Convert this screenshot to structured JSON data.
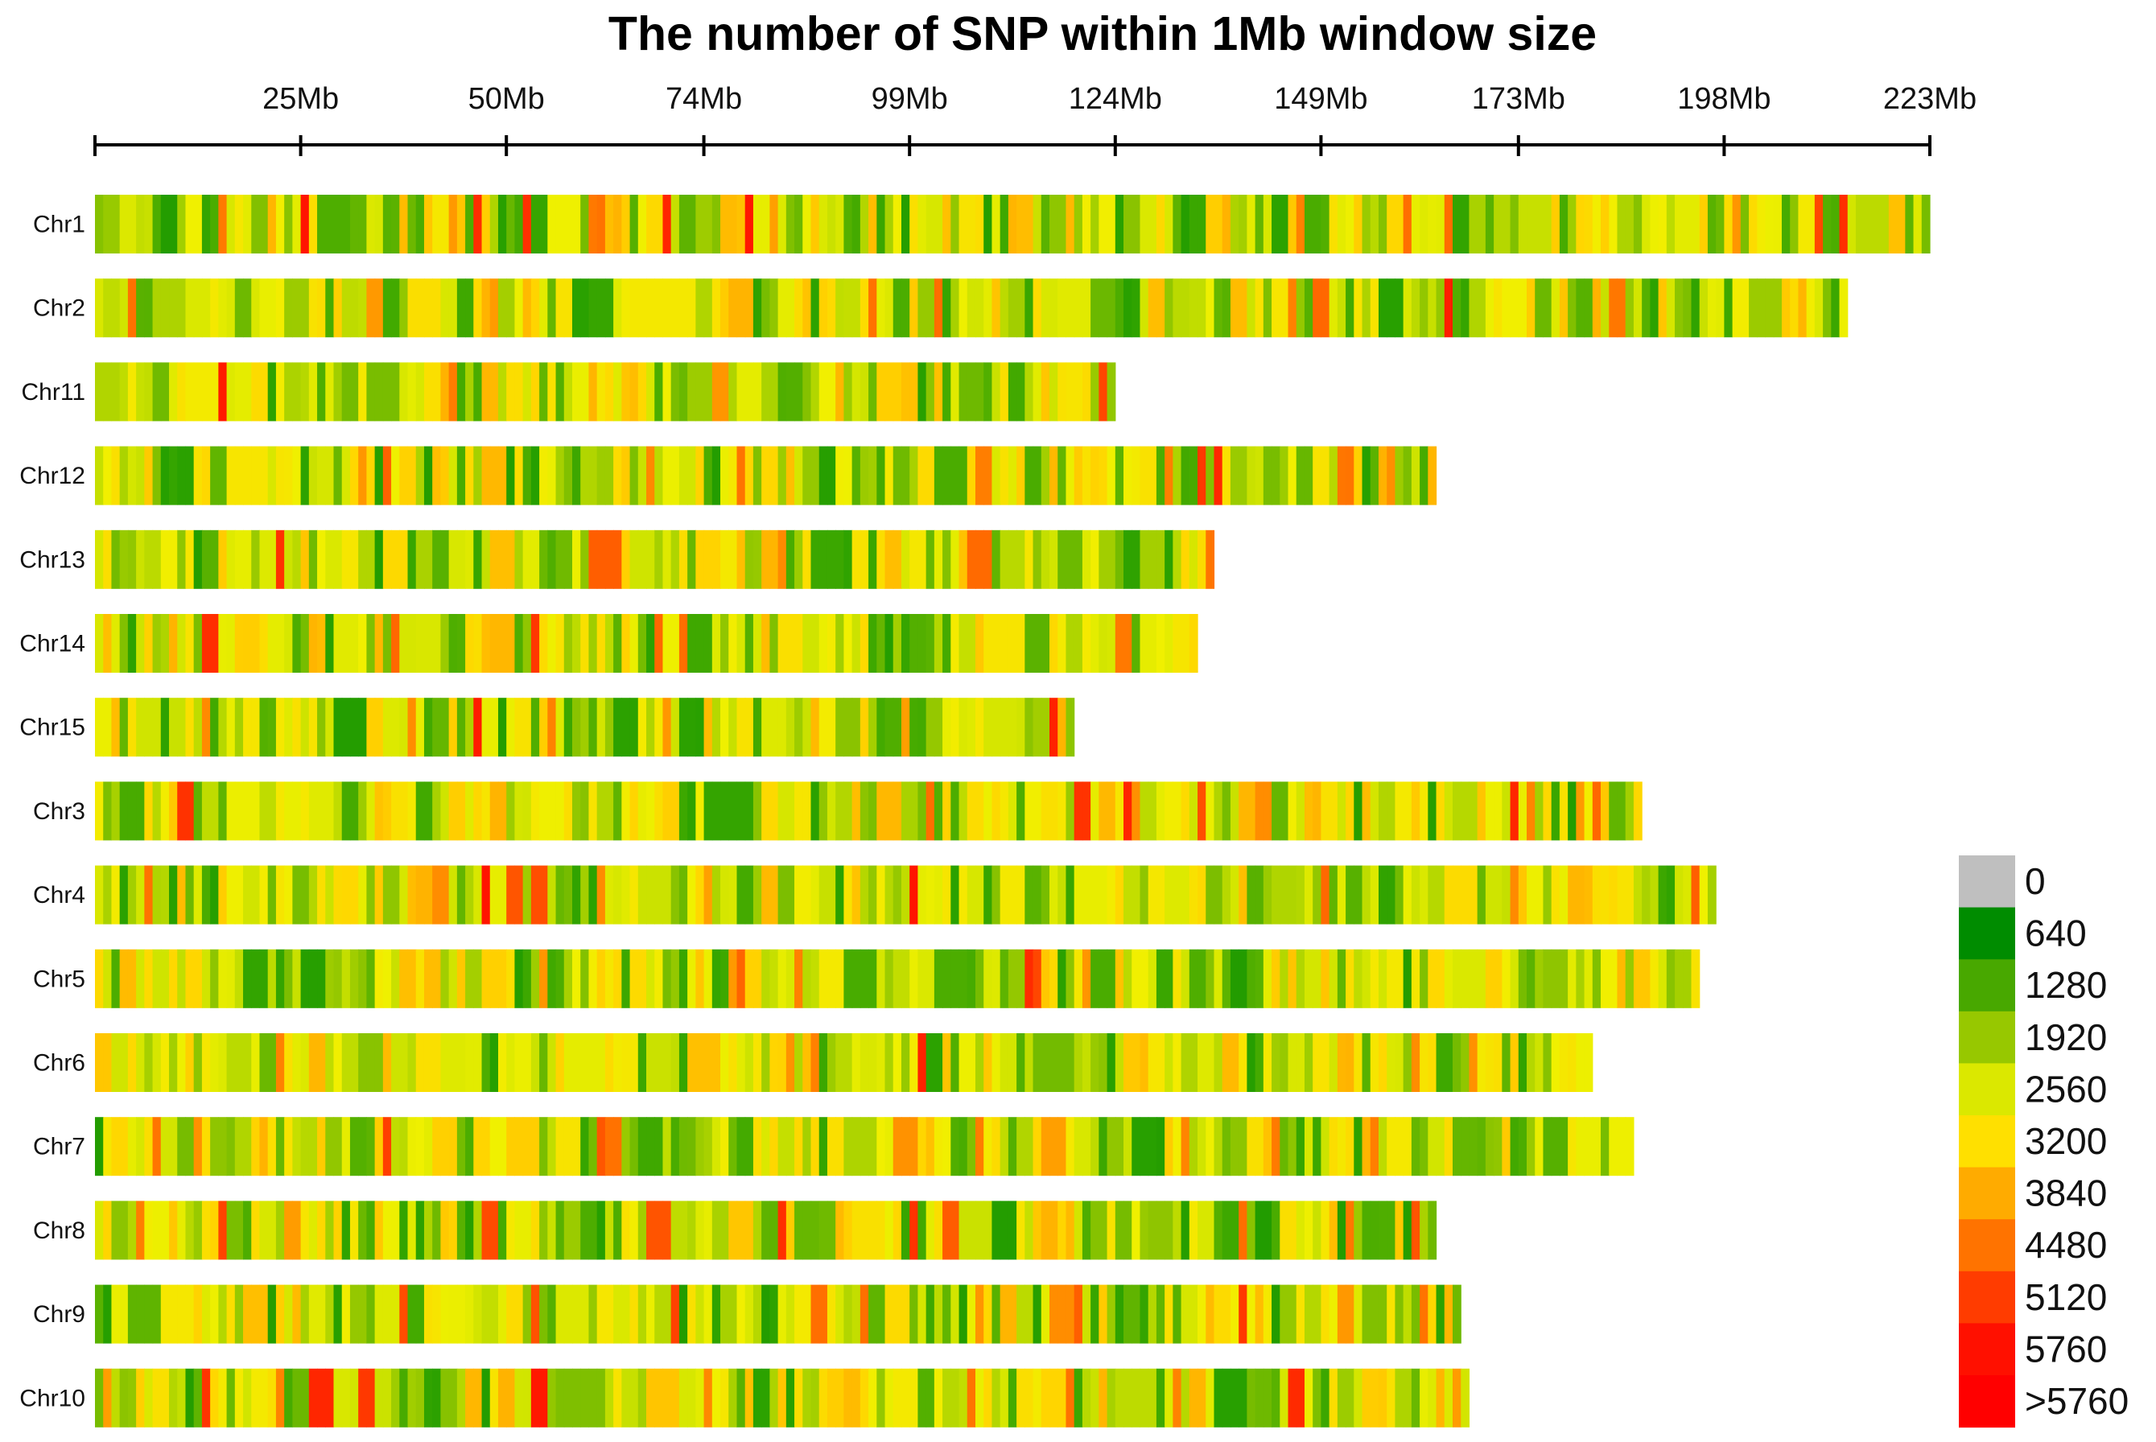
{
  "chart_data": {
    "type": "heatmap",
    "title": "The number of SNP within 1Mb window size",
    "window_size": "1Mb",
    "x_axis": {
      "range_mb": [
        0,
        223
      ],
      "ticks": [
        {
          "value": 25,
          "label": "25Mb"
        },
        {
          "value": 50,
          "label": "50Mb"
        },
        {
          "value": 74,
          "label": "74Mb"
        },
        {
          "value": 99,
          "label": "99Mb"
        },
        {
          "value": 124,
          "label": "124Mb"
        },
        {
          "value": 149,
          "label": "149Mb"
        },
        {
          "value": 173,
          "label": "173Mb"
        },
        {
          "value": 198,
          "label": "198Mb"
        },
        {
          "value": 223,
          "label": "223Mb"
        }
      ]
    },
    "chromosomes": [
      {
        "name": "Chr1",
        "length_mb": 223
      },
      {
        "name": "Chr2",
        "length_mb": 213
      },
      {
        "name": "Chr11",
        "length_mb": 124
      },
      {
        "name": "Chr12",
        "length_mb": 163
      },
      {
        "name": "Chr13",
        "length_mb": 136
      },
      {
        "name": "Chr14",
        "length_mb": 134
      },
      {
        "name": "Chr15",
        "length_mb": 119
      },
      {
        "name": "Chr3",
        "length_mb": 188
      },
      {
        "name": "Chr4",
        "length_mb": 197
      },
      {
        "name": "Chr5",
        "length_mb": 195
      },
      {
        "name": "Chr6",
        "length_mb": 182
      },
      {
        "name": "Chr7",
        "length_mb": 187
      },
      {
        "name": "Chr8",
        "length_mb": 163
      },
      {
        "name": "Chr9",
        "length_mb": 166
      },
      {
        "name": "Chr10",
        "length_mb": 167
      }
    ],
    "legend": {
      "title": "",
      "bins": [
        {
          "label": "0",
          "color": "#bfbfbf"
        },
        {
          "label": "640",
          "color": "#008c00"
        },
        {
          "label": "1280",
          "color": "#48a800"
        },
        {
          "label": "1920",
          "color": "#97c800"
        },
        {
          "label": "2560",
          "color": "#dbe800"
        },
        {
          "label": "3200",
          "color": "#ffe000"
        },
        {
          "label": "3840",
          "color": "#ffab00"
        },
        {
          "label": "4480",
          "color": "#ff7300"
        },
        {
          "label": "5120",
          "color": "#ff3c00"
        },
        {
          "label": "5760",
          "color": "#ff1000"
        },
        {
          "label": ">5760",
          "color": "#ff0000"
        }
      ]
    }
  }
}
